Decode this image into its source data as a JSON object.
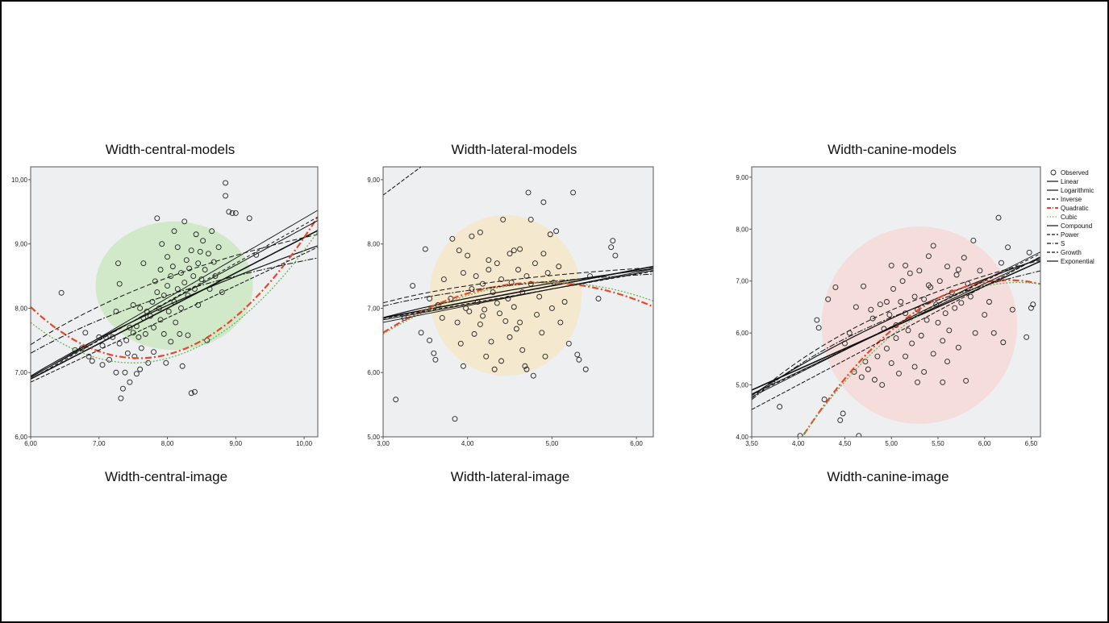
{
  "chart_data": [
    {
      "type": "scatter",
      "title": "Width-central-models",
      "xlabel": "Width-central-image",
      "ylabel": "",
      "xlim": [
        6.0,
        10.2
      ],
      "ylim": [
        6.0,
        10.2
      ],
      "xticks": [
        "6,00",
        "7,00",
        "8,00",
        "9,00",
        "10,00"
      ],
      "yticks": [
        "6,00",
        "7,00",
        "8,00",
        "9,00",
        "10,00"
      ],
      "highlight": {
        "color": "#cfe8c6",
        "cx": 8.1,
        "cy": 8.35,
        "rx": 1.15,
        "ry": 1.0
      },
      "fits": {
        "Linear": [
          0.55,
          3.6
        ],
        "Logarithmic": [
          3.82,
          0.1
        ],
        "Inverse": [
          11.6,
          -25.0
        ],
        "Quadratic": [
          0.32,
          -4.85,
          25.6
        ],
        "Cubic": [
          0.28,
          -4.2,
          22.9
        ],
        "Compound": [
          0.58,
          3.45
        ],
        "Power": [
          0.5,
          3.85
        ],
        "S": [
          10.9,
          -21.6
        ],
        "Growth": [
          0.6,
          3.3
        ],
        "Exponential": [
          0.62,
          3.2
        ]
      },
      "points": [
        [
          6.45,
          8.24
        ],
        [
          6.65,
          7.35
        ],
        [
          6.75,
          7.38
        ],
        [
          6.8,
          7.62
        ],
        [
          6.85,
          7.25
        ],
        [
          6.9,
          7.18
        ],
        [
          7.0,
          7.55
        ],
        [
          7.05,
          7.12
        ],
        [
          7.05,
          7.42
        ],
        [
          7.1,
          7.55
        ],
        [
          7.15,
          7.2
        ],
        [
          7.2,
          7.55
        ],
        [
          7.25,
          7.95
        ],
        [
          7.25,
          7.0
        ],
        [
          7.28,
          8.7
        ],
        [
          7.3,
          8.38
        ],
        [
          7.3,
          7.45
        ],
        [
          7.32,
          6.6
        ],
        [
          7.35,
          6.75
        ],
        [
          7.38,
          7.0
        ],
        [
          7.4,
          7.5
        ],
        [
          7.42,
          7.3
        ],
        [
          7.45,
          7.7
        ],
        [
          7.45,
          6.85
        ],
        [
          7.5,
          7.62
        ],
        [
          7.5,
          8.05
        ],
        [
          7.52,
          7.25
        ],
        [
          7.55,
          6.98
        ],
        [
          7.55,
          7.72
        ],
        [
          7.58,
          7.55
        ],
        [
          7.6,
          7.05
        ],
        [
          7.6,
          8.0
        ],
        [
          7.62,
          7.38
        ],
        [
          7.65,
          7.85
        ],
        [
          7.65,
          8.7
        ],
        [
          7.68,
          7.6
        ],
        [
          7.7,
          7.95
        ],
        [
          7.72,
          7.15
        ],
        [
          7.75,
          7.88
        ],
        [
          7.78,
          8.1
        ],
        [
          7.8,
          7.32
        ],
        [
          7.8,
          7.7
        ],
        [
          7.82,
          8.42
        ],
        [
          7.85,
          8.25
        ],
        [
          7.85,
          9.4
        ],
        [
          7.88,
          8.0
        ],
        [
          7.9,
          7.82
        ],
        [
          7.9,
          8.6
        ],
        [
          7.92,
          9.0
        ],
        [
          7.95,
          8.2
        ],
        [
          7.95,
          7.6
        ],
        [
          7.98,
          7.15
        ],
        [
          8.0,
          8.35
        ],
        [
          8.0,
          8.8
        ],
        [
          8.02,
          7.95
        ],
        [
          8.05,
          8.5
        ],
        [
          8.05,
          7.48
        ],
        [
          8.08,
          8.65
        ],
        [
          8.1,
          8.1
        ],
        [
          8.1,
          9.2
        ],
        [
          8.12,
          7.78
        ],
        [
          8.15,
          8.3
        ],
        [
          8.15,
          8.95
        ],
        [
          8.18,
          7.6
        ],
        [
          8.2,
          8.0
        ],
        [
          8.2,
          8.55
        ],
        [
          8.22,
          7.1
        ],
        [
          8.25,
          8.4
        ],
        [
          8.25,
          9.35
        ],
        [
          8.28,
          8.75
        ],
        [
          8.3,
          8.2
        ],
        [
          8.3,
          7.58
        ],
        [
          8.32,
          8.62
        ],
        [
          8.35,
          8.9
        ],
        [
          8.35,
          6.68
        ],
        [
          8.38,
          8.5
        ],
        [
          8.4,
          6.7
        ],
        [
          8.4,
          8.3
        ],
        [
          8.42,
          9.15
        ],
        [
          8.45,
          8.05
        ],
        [
          8.45,
          8.7
        ],
        [
          8.48,
          8.88
        ],
        [
          8.5,
          8.45
        ],
        [
          8.52,
          9.05
        ],
        [
          8.55,
          8.6
        ],
        [
          8.58,
          7.5
        ],
        [
          8.6,
          8.85
        ],
        [
          8.62,
          8.3
        ],
        [
          8.65,
          9.2
        ],
        [
          8.68,
          8.72
        ],
        [
          8.7,
          8.5
        ],
        [
          8.75,
          8.95
        ],
        [
          8.8,
          8.25
        ],
        [
          8.85,
          9.75
        ],
        [
          8.85,
          9.95
        ],
        [
          8.9,
          9.5
        ],
        [
          8.95,
          9.48
        ],
        [
          9.0,
          9.48
        ],
        [
          9.2,
          9.4
        ],
        [
          9.3,
          8.83
        ]
      ]
    },
    {
      "type": "scatter",
      "title": "Width-lateral-models",
      "xlabel": "Width-lateral-image",
      "ylabel": "",
      "xlim": [
        3.0,
        6.2
      ],
      "ylim": [
        5.0,
        9.2
      ],
      "xticks": [
        "3,00",
        "4,00",
        "5,00",
        "6,00"
      ],
      "yticks": [
        "5,00",
        "6,00",
        "7,00",
        "8,00",
        "9,00"
      ],
      "highlight": {
        "color": "#f3e7cc",
        "cx": 4.45,
        "cy": 7.2,
        "rx": 0.9,
        "ry": 1.25
      },
      "fits": {
        "Linear": [
          0.25,
          6.1
        ],
        "Logarithmic": [
          1.05,
          5.7
        ],
        "Inverse": [
          8.15,
          -3.2
        ],
        "Quadratic": [
          -0.22,
          2.15,
          2.15
        ],
        "Cubic": [
          -0.2,
          2.0,
          2.4
        ],
        "Compound": [
          0.24,
          6.1
        ],
        "Power": [
          0.98,
          5.82
        ],
        "S": [
          8.0,
          -2.9
        ],
        "Growth": [
          0.23,
          6.15
        ],
        "Exponential": [
          0.26,
          6.0
        ]
      },
      "points": [
        [
          3.15,
          5.58
        ],
        [
          3.25,
          6.85
        ],
        [
          3.35,
          7.35
        ],
        [
          3.45,
          6.62
        ],
        [
          3.5,
          7.92
        ],
        [
          3.55,
          7.15
        ],
        [
          3.55,
          6.5
        ],
        [
          3.6,
          6.3
        ],
        [
          3.62,
          6.2
        ],
        [
          3.65,
          7.05
        ],
        [
          3.7,
          6.85
        ],
        [
          3.72,
          7.45
        ],
        [
          3.8,
          7.15
        ],
        [
          3.82,
          8.08
        ],
        [
          3.85,
          5.28
        ],
        [
          3.88,
          6.78
        ],
        [
          3.9,
          7.9
        ],
        [
          3.92,
          6.45
        ],
        [
          3.95,
          7.55
        ],
        [
          3.98,
          7.0
        ],
        [
          4.0,
          7.82
        ],
        [
          4.02,
          6.95
        ],
        [
          4.05,
          8.12
        ],
        [
          4.05,
          7.3
        ],
        [
          4.08,
          6.6
        ],
        [
          4.1,
          7.5
        ],
        [
          4.12,
          7.1
        ],
        [
          4.15,
          8.18
        ],
        [
          4.15,
          6.75
        ],
        [
          4.18,
          7.38
        ],
        [
          4.2,
          6.98
        ],
        [
          4.22,
          6.25
        ],
        [
          4.25,
          7.75
        ],
        [
          4.25,
          7.6
        ],
        [
          4.28,
          6.48
        ],
        [
          4.3,
          7.25
        ],
        [
          4.32,
          6.05
        ],
        [
          4.35,
          7.7
        ],
        [
          4.38,
          6.92
        ],
        [
          4.4,
          7.45
        ],
        [
          4.42,
          8.38
        ],
        [
          4.45,
          6.8
        ],
        [
          4.48,
          7.15
        ],
        [
          4.5,
          7.85
        ],
        [
          4.5,
          6.55
        ],
        [
          4.52,
          7.4
        ],
        [
          4.55,
          7.02
        ],
        [
          4.58,
          6.68
        ],
        [
          4.6,
          7.6
        ],
        [
          4.62,
          7.92
        ],
        [
          4.65,
          6.35
        ],
        [
          4.65,
          7.25
        ],
        [
          4.68,
          6.1
        ],
        [
          4.7,
          7.5
        ],
        [
          4.72,
          8.8
        ],
        [
          4.75,
          8.38
        ],
        [
          4.75,
          7.38
        ],
        [
          4.78,
          5.95
        ],
        [
          4.8,
          7.7
        ],
        [
          4.82,
          6.9
        ],
        [
          4.85,
          7.18
        ],
        [
          4.88,
          6.62
        ],
        [
          4.9,
          7.85
        ],
        [
          4.9,
          8.65
        ],
        [
          4.92,
          6.25
        ],
        [
          4.95,
          7.55
        ],
        [
          4.98,
          8.15
        ],
        [
          5.0,
          7.0
        ],
        [
          5.02,
          7.4
        ],
        [
          5.05,
          8.2
        ],
        [
          5.08,
          7.65
        ],
        [
          5.1,
          6.78
        ],
        [
          5.15,
          7.1
        ],
        [
          5.2,
          6.45
        ],
        [
          5.25,
          8.8
        ],
        [
          5.3,
          6.28
        ],
        [
          5.32,
          6.2
        ],
        [
          5.4,
          6.05
        ],
        [
          5.45,
          7.5
        ],
        [
          5.55,
          7.15
        ],
        [
          5.7,
          7.95
        ],
        [
          5.72,
          8.05
        ],
        [
          5.75,
          7.82
        ],
        [
          4.62,
          6.78
        ],
        [
          4.35,
          7.08
        ],
        [
          4.18,
          6.88
        ],
        [
          4.55,
          7.9
        ],
        [
          4.4,
          6.18
        ],
        [
          3.95,
          6.1
        ],
        [
          4.7,
          6.05
        ]
      ]
    },
    {
      "type": "scatter",
      "title": "Width-canine-models",
      "xlabel": "Width-canine-image",
      "ylabel": "",
      "xlim": [
        3.5,
        6.6
      ],
      "ylim": [
        4.0,
        9.2
      ],
      "xticks": [
        "3,50",
        "4,00",
        "4,50",
        "5,00",
        "5,50",
        "6,00",
        "6,50"
      ],
      "yticks": [
        "4,00",
        "5,00",
        "6,00",
        "7,00",
        "8,00",
        "9,00"
      ],
      "highlight": {
        "color": "#f3dbd8",
        "cx": 5.3,
        "cy": 6.15,
        "rx": 1.05,
        "ry": 1.9
      },
      "fits": {
        "Linear": [
          0.8,
          2.1
        ],
        "Logarithmic": [
          4.15,
          -0.4
        ],
        "Inverse": [
          10.4,
          -19.8
        ],
        "Quadratic": [
          -0.62,
          7.75,
          -17.2
        ],
        "Cubic": [
          -0.55,
          7.0,
          -15.3
        ],
        "Compound": [
          0.85,
          1.85
        ],
        "Power": [
          0.95,
          1.2
        ],
        "S": [
          10.0,
          -18.5
        ],
        "Growth": [
          0.88,
          1.72
        ],
        "Exponential": [
          0.9,
          1.62
        ]
      },
      "points": [
        [
          3.8,
          4.58
        ],
        [
          4.02,
          4.02
        ],
        [
          4.2,
          6.25
        ],
        [
          4.22,
          6.1
        ],
        [
          4.28,
          4.72
        ],
        [
          4.32,
          6.65
        ],
        [
          4.4,
          6.88
        ],
        [
          4.45,
          4.32
        ],
        [
          4.48,
          4.45
        ],
        [
          4.5,
          5.8
        ],
        [
          4.55,
          6.0
        ],
        [
          4.6,
          5.25
        ],
        [
          4.62,
          6.5
        ],
        [
          4.65,
          4.02
        ],
        [
          4.68,
          5.15
        ],
        [
          4.7,
          6.9
        ],
        [
          4.72,
          5.45
        ],
        [
          4.75,
          5.3
        ],
        [
          4.78,
          6.45
        ],
        [
          4.8,
          6.28
        ],
        [
          4.82,
          5.1
        ],
        [
          4.85,
          5.55
        ],
        [
          4.88,
          6.55
        ],
        [
          4.9,
          5.0
        ],
        [
          4.92,
          6.08
        ],
        [
          4.95,
          5.7
        ],
        [
          4.98,
          6.35
        ],
        [
          5.0,
          5.42
        ],
        [
          5.0,
          7.3
        ],
        [
          5.02,
          6.85
        ],
        [
          5.05,
          5.9
        ],
        [
          5.05,
          6.15
        ],
        [
          5.08,
          5.22
        ],
        [
          5.1,
          6.6
        ],
        [
          5.12,
          7.0
        ],
        [
          5.15,
          5.55
        ],
        [
          5.15,
          6.38
        ],
        [
          5.18,
          6.05
        ],
        [
          5.2,
          7.15
        ],
        [
          5.22,
          5.8
        ],
        [
          5.25,
          6.7
        ],
        [
          5.25,
          5.35
        ],
        [
          5.28,
          6.45
        ],
        [
          5.3,
          7.2
        ],
        [
          5.32,
          5.95
        ],
        [
          5.35,
          6.65
        ],
        [
          5.35,
          5.25
        ],
        [
          5.38,
          6.25
        ],
        [
          5.4,
          7.48
        ],
        [
          5.42,
          6.88
        ],
        [
          5.45,
          5.6
        ],
        [
          5.45,
          7.68
        ],
        [
          5.48,
          6.55
        ],
        [
          5.5,
          6.2
        ],
        [
          5.52,
          7.0
        ],
        [
          5.55,
          5.85
        ],
        [
          5.58,
          6.38
        ],
        [
          5.6,
          7.28
        ],
        [
          5.62,
          6.05
        ],
        [
          5.65,
          6.78
        ],
        [
          5.68,
          6.48
        ],
        [
          5.7,
          7.12
        ],
        [
          5.72,
          5.72
        ],
        [
          5.75,
          6.58
        ],
        [
          5.78,
          7.45
        ],
        [
          5.8,
          5.08
        ],
        [
          5.82,
          6.95
        ],
        [
          5.85,
          6.7
        ],
        [
          5.88,
          7.78
        ],
        [
          5.9,
          6.0
        ],
        [
          5.95,
          7.2
        ],
        [
          6.0,
          6.35
        ],
        [
          6.05,
          6.6
        ],
        [
          6.1,
          6.0
        ],
        [
          6.15,
          8.22
        ],
        [
          6.18,
          7.35
        ],
        [
          6.2,
          5.82
        ],
        [
          6.25,
          7.65
        ],
        [
          6.3,
          6.45
        ],
        [
          6.45,
          5.92
        ],
        [
          6.48,
          7.55
        ],
        [
          6.5,
          6.48
        ],
        [
          6.52,
          6.55
        ],
        [
          5.55,
          5.05
        ],
        [
          5.4,
          6.92
        ],
        [
          4.95,
          6.6
        ],
        [
          5.28,
          5.05
        ],
        [
          5.15,
          7.3
        ],
        [
          5.6,
          5.45
        ],
        [
          5.72,
          7.22
        ]
      ]
    }
  ],
  "legend": {
    "items": [
      {
        "label": "Observed",
        "style": "circle"
      },
      {
        "label": "Linear",
        "style": "solid"
      },
      {
        "label": "Logarithmic",
        "style": "solid"
      },
      {
        "label": "Inverse",
        "style": "dash"
      },
      {
        "label": "Quadratic",
        "style": "dashdot-red"
      },
      {
        "label": "Cubic",
        "style": "dot-green"
      },
      {
        "label": "Compound",
        "style": "solid"
      },
      {
        "label": "Power",
        "style": "dash"
      },
      {
        "label": "S",
        "style": "dashdot"
      },
      {
        "label": "Growth",
        "style": "dash"
      },
      {
        "label": "Exponential",
        "style": "solid"
      }
    ]
  },
  "colors": {
    "plot_bg": "#eeeff1",
    "quadratic": "#e04a2a",
    "cubic": "#6fb35a",
    "line": "#111111"
  }
}
